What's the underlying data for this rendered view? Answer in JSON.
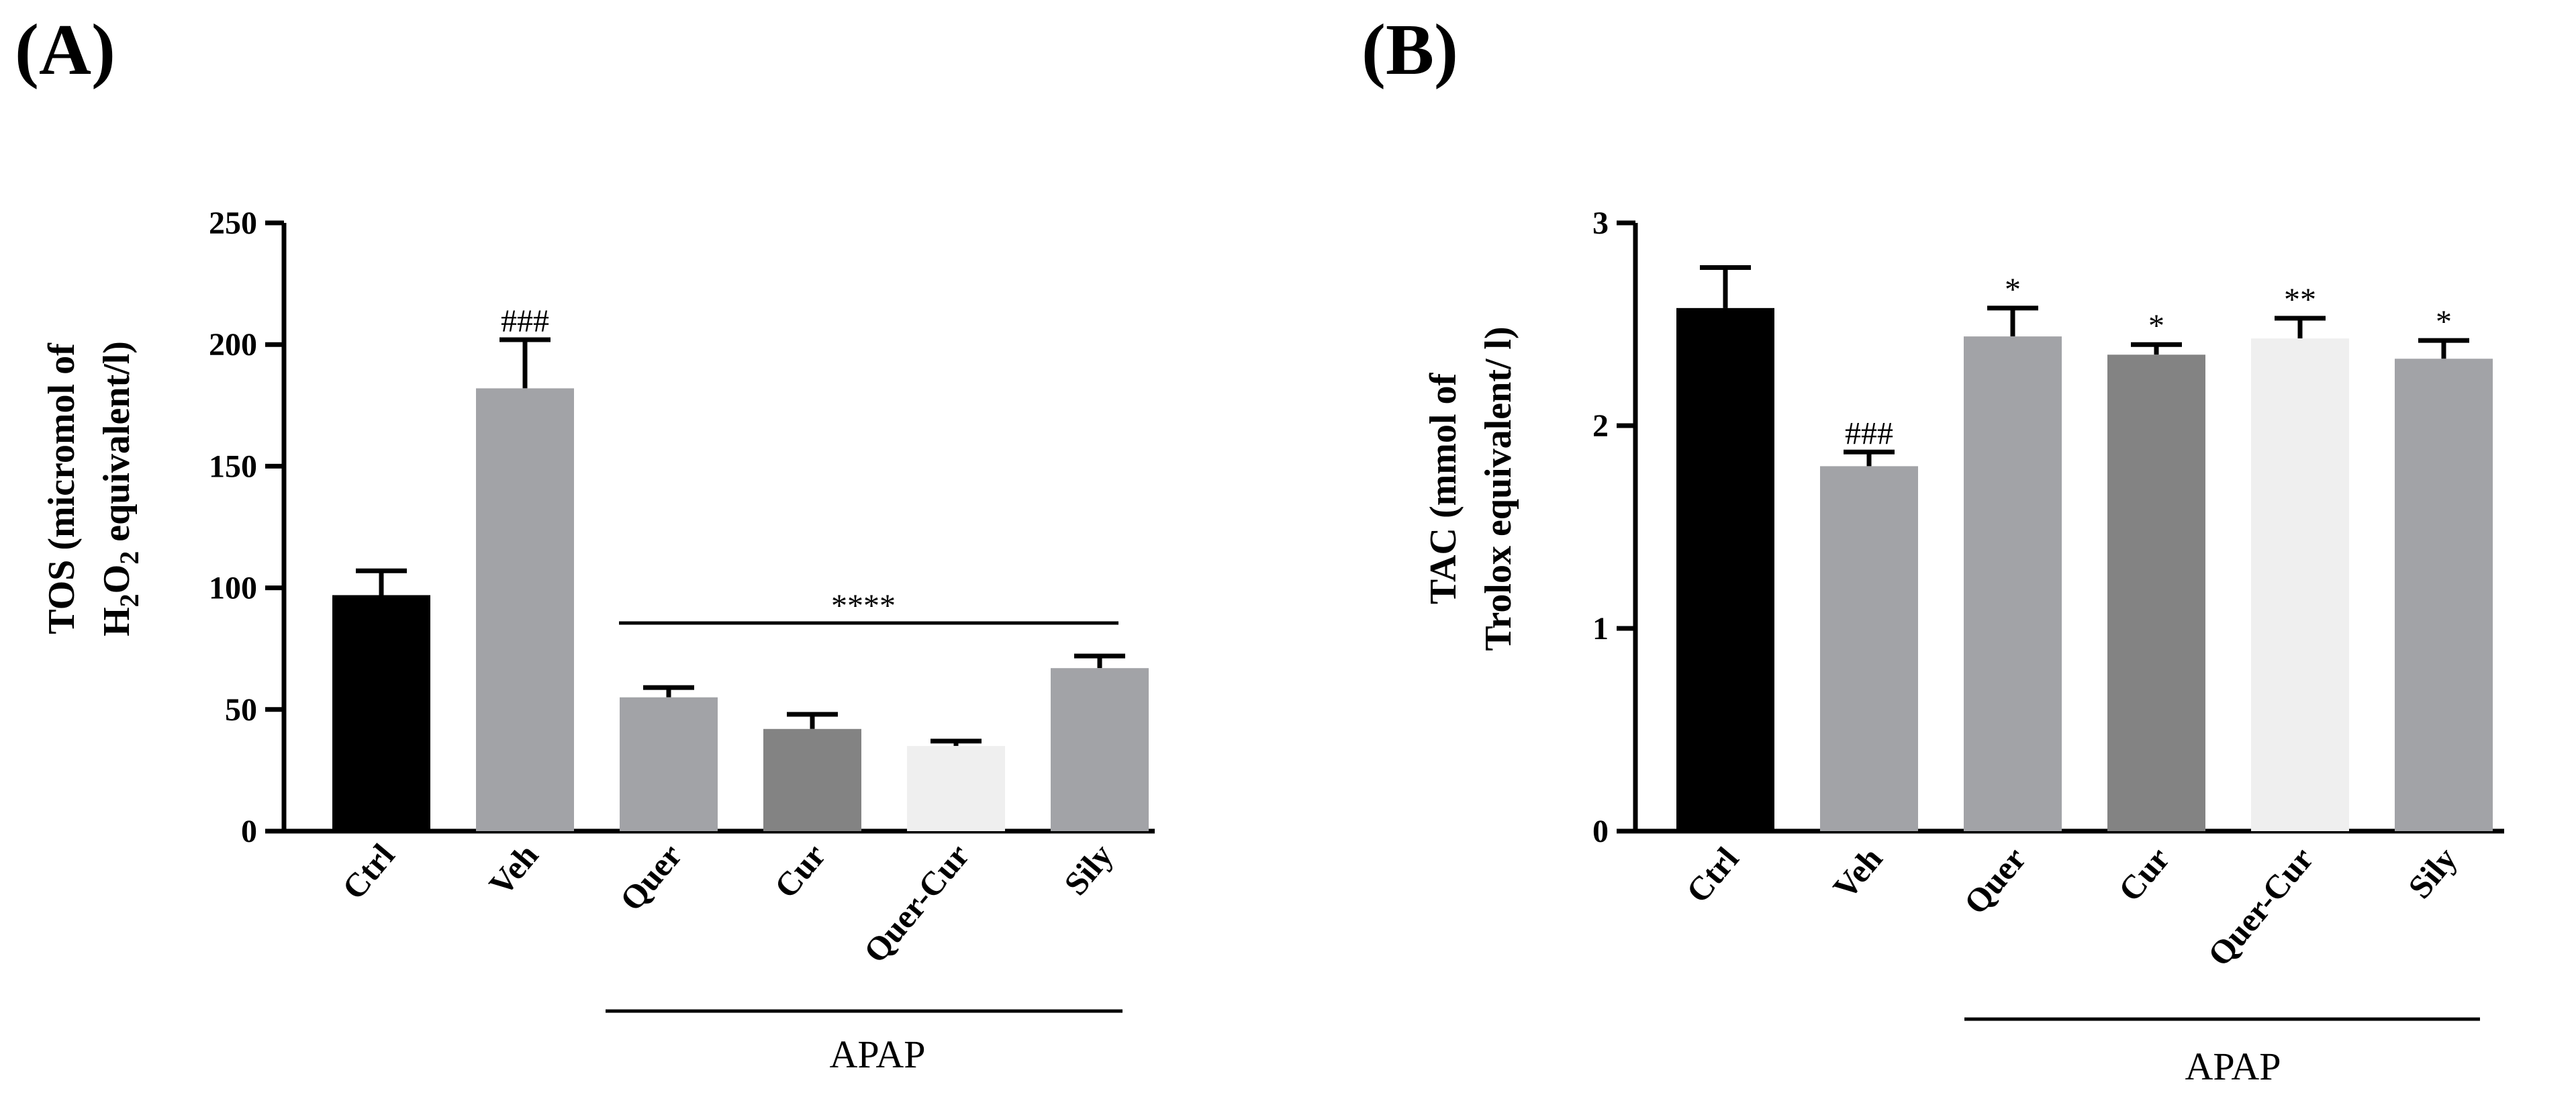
{
  "chart_data": [
    {
      "panel_label": "(A)",
      "type": "bar",
      "categories": [
        "Ctrl",
        "Veh",
        "Quer",
        "Cur",
        "Quer-Cur",
        "Sily"
      ],
      "values": [
        97,
        182,
        55,
        42,
        35,
        67
      ],
      "errors": [
        10,
        20,
        4,
        6,
        2,
        5
      ],
      "colors": [
        "#000000",
        "#a2a3a7",
        "#a2a3a7",
        "#838383",
        "#efefef",
        "#a2a3a7"
      ],
      "ylabel_line1": "TOS (micromol of",
      "ylabel_line2_prefix": "H",
      "ylabel_line2_sub1": "2",
      "ylabel_line2_mid": "O",
      "ylabel_line2_sub2": "2",
      "ylabel_line2_suffix": " equivalent/l)",
      "ylim": [
        0,
        250
      ],
      "yticks": [
        "0",
        "50",
        "100",
        "150",
        "200",
        "250"
      ],
      "yticks_values": [
        0,
        50,
        100,
        150,
        200,
        250
      ],
      "bar_annotations": [
        "",
        "###",
        "",
        "",
        "",
        ""
      ],
      "bracket_annotation": "****",
      "group_label": "APAP",
      "group_start_index": 2,
      "group_end_index": 5
    },
    {
      "panel_label": "(B)",
      "type": "bar",
      "categories": [
        "Ctrl",
        "Veh",
        "Quer",
        "Cur",
        "Quer-Cur",
        "Sily"
      ],
      "values": [
        2.58,
        1.8,
        2.44,
        2.35,
        2.43,
        2.33
      ],
      "errors": [
        0.2,
        0.07,
        0.14,
        0.05,
        0.1,
        0.09
      ],
      "colors": [
        "#000000",
        "#a2a3a7",
        "#a2a3a7",
        "#838383",
        "#efefef",
        "#a2a3a7"
      ],
      "ylabel_line1": "TAC (mmol of",
      "ylabel_line2": "Trolox equivalent/ l)",
      "ylim": [
        0,
        3
      ],
      "yticks": [
        "0",
        "1",
        "2",
        "3"
      ],
      "yticks_values": [
        0,
        1,
        2,
        3
      ],
      "bar_annotations": [
        "",
        "###",
        "*",
        "*",
        "**",
        "*"
      ],
      "group_label": "APAP",
      "group_start_index": 2,
      "group_end_index": 5
    }
  ]
}
